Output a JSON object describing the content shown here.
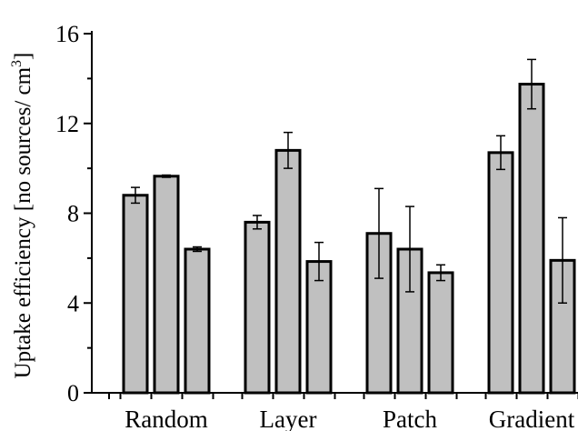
{
  "chart_data": {
    "type": "bar",
    "title": "",
    "xlabel": "",
    "ylabel": "Uptake efficiency [no sources/ cm",
    "ylabel_superscript": "3",
    "ylabel_suffix": "]",
    "ylim": [
      0,
      16
    ],
    "yticks": [
      0,
      4,
      8,
      12,
      16
    ],
    "grid": false,
    "legend": "none",
    "categories": [
      "Random",
      "Layer",
      "Patch",
      "Gradient"
    ],
    "bars_per_category": 3,
    "series": [
      {
        "values": [
          8.8,
          7.6,
          7.1,
          10.7
        ],
        "errors": [
          0.35,
          0.3,
          2.0,
          0.75
        ]
      },
      {
        "values": [
          9.65,
          10.8,
          6.4,
          13.75
        ],
        "errors": [
          0.05,
          0.8,
          1.9,
          1.1
        ]
      },
      {
        "values": [
          6.4,
          5.85,
          5.35,
          5.9
        ],
        "errors": [
          0.1,
          0.85,
          0.35,
          1.9
        ]
      }
    ],
    "bar_color": "#c0c0c0",
    "edge_color": "#000000"
  }
}
